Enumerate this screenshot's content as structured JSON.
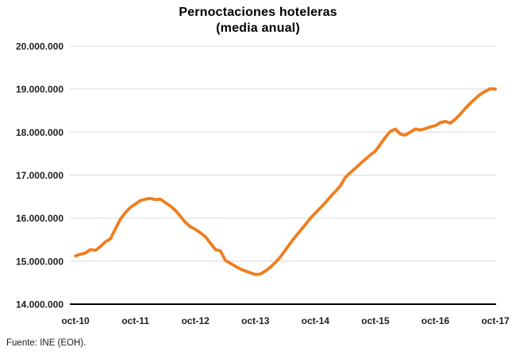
{
  "figure": {
    "title": "Pernoctaciones hoteleras",
    "subtitle": "(media anual)",
    "source": "Fuente: INE (EOH)."
  },
  "colors": {
    "line": "#F07D1E",
    "gridline": "#D9D9D9",
    "axis": "#000000",
    "label_text": "#1F1F1F"
  },
  "chart_data": {
    "type": "line",
    "title": "Pernoctaciones hoteleras",
    "subtitle": "(media anual)",
    "source": "Fuente: INE (EOH).",
    "xlabel": "",
    "ylabel": "",
    "legend": "none",
    "grid": "horizontal",
    "x_unit": "month",
    "x_start": "oct-10",
    "x_end": "oct-17",
    "x_tick_labels": [
      "oct-10",
      "oct-11",
      "oct-12",
      "oct-13",
      "oct-14",
      "oct-15",
      "oct-16",
      "oct-17"
    ],
    "x_tick_month_indices": [
      0,
      12,
      24,
      36,
      48,
      60,
      72,
      84
    ],
    "ylim": [
      14000000,
      20000000
    ],
    "y_ticks": [
      {
        "value": 20000000,
        "label": "20.000.000"
      },
      {
        "value": 19000000,
        "label": "19.000.000"
      },
      {
        "value": 18000000,
        "label": "18.000.000"
      },
      {
        "value": 17000000,
        "label": "17.000.000"
      },
      {
        "value": 16000000,
        "label": "16.000.000"
      },
      {
        "value": 15000000,
        "label": "15.000.000"
      },
      {
        "value": 14000000,
        "label": "14.000.000"
      }
    ],
    "series": [
      {
        "name": "Pernoctaciones hoteleras (media anual)",
        "color": "#F07D1E",
        "monthly_values": [
          15120000,
          15160000,
          15190000,
          15270000,
          15250000,
          15340000,
          15450000,
          15520000,
          15750000,
          15980000,
          16130000,
          16250000,
          16330000,
          16410000,
          16440000,
          16460000,
          16430000,
          16440000,
          16360000,
          16280000,
          16180000,
          16040000,
          15900000,
          15800000,
          15740000,
          15660000,
          15570000,
          15420000,
          15270000,
          15240000,
          15020000,
          14950000,
          14880000,
          14820000,
          14770000,
          14730000,
          14690000,
          14700000,
          14770000,
          14860000,
          14970000,
          15100000,
          15260000,
          15420000,
          15570000,
          15710000,
          15850000,
          16000000,
          16120000,
          16240000,
          16360000,
          16500000,
          16620000,
          16750000,
          16950000,
          17060000,
          17160000,
          17270000,
          17370000,
          17470000,
          17560000,
          17720000,
          17880000,
          18020000,
          18070000,
          17950000,
          17930000,
          18000000,
          18070000,
          18050000,
          18080000,
          18120000,
          18150000,
          18220000,
          18250000,
          18210000,
          18300000,
          18420000,
          18550000,
          18670000,
          18780000,
          18880000,
          18950000,
          19010000,
          19000000
        ]
      }
    ]
  }
}
